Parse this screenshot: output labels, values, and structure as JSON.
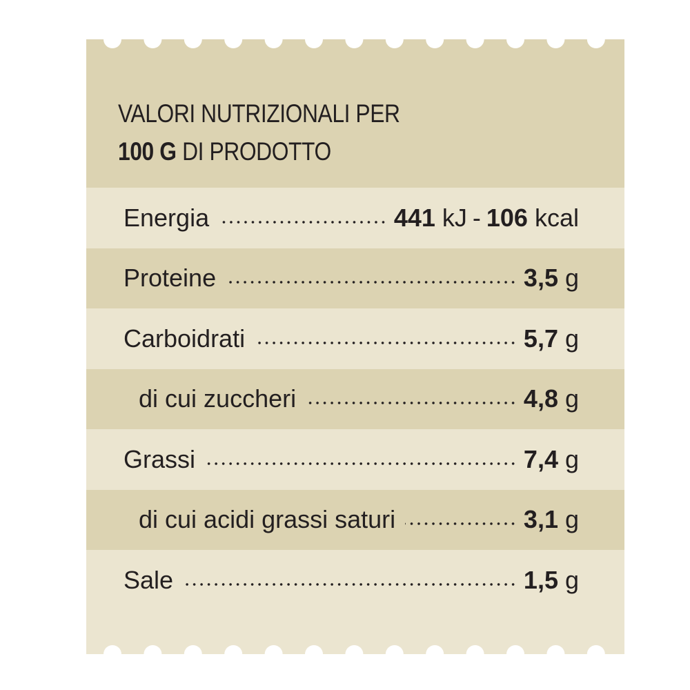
{
  "header": {
    "line1": "VALORI NUTRIZIONALI PER",
    "line2_bold": "100 G",
    "line2_rest": "DI PRODOTTO"
  },
  "rows": [
    {
      "label": "Energia",
      "value": "441",
      "unit": "kJ",
      "separator": "-",
      "value2": "106",
      "unit2": "kcal",
      "indent": false
    },
    {
      "label": "Proteine",
      "value": "3,5",
      "unit": "g",
      "indent": false
    },
    {
      "label": "Carboidrati",
      "value": "5,7",
      "unit": "g",
      "indent": false
    },
    {
      "label": "di cui zuccheri",
      "value": "4,8",
      "unit": "g",
      "indent": true
    },
    {
      "label": "Grassi",
      "value": "7,4",
      "unit": "g",
      "indent": false
    },
    {
      "label": "di cui acidi grassi saturi",
      "value": "3,1",
      "unit": "g",
      "indent": true
    },
    {
      "label": "Sale",
      "value": "1,5",
      "unit": "g",
      "indent": false
    }
  ]
}
